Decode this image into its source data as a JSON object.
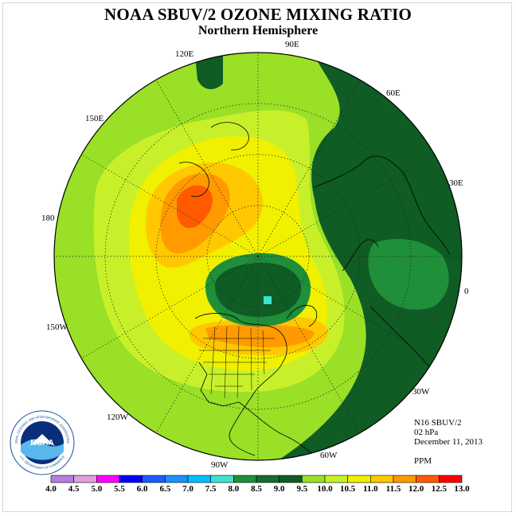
{
  "title": "NOAA SBUV/2 OZONE MIXING RATIO",
  "subtitle": "Northern Hemisphere",
  "longitude_labels": [
    "90E",
    "60E",
    "30E",
    "0",
    "30W",
    "60W",
    "90W",
    "120W",
    "150W",
    "180",
    "150E",
    "120E"
  ],
  "info": {
    "instrument": "N16 SBUV/2",
    "level": "02 hPa",
    "date": "December 11, 2013",
    "units": "PPM"
  },
  "logo": {
    "text": "NOAA",
    "ring_text": "NATIONAL OCEANIC AND ATMOSPHERIC ADMINISTRATION",
    "bottom_text": "U.S. DEPARTMENT OF COMMERCE"
  },
  "colorbar": {
    "ticks": [
      "4.0",
      "4.5",
      "5.0",
      "5.5",
      "6.0",
      "6.5",
      "7.0",
      "7.5",
      "8.0",
      "8.5",
      "9.0",
      "9.5",
      "10.0",
      "10.5",
      "11.0",
      "11.5",
      "12.0",
      "12.5",
      "13.0"
    ],
    "colors": [
      "#b57edc",
      "#dda0dd",
      "#ff00ff",
      "#0000ff",
      "#1e5aff",
      "#1e90ff",
      "#00bfff",
      "#40e0d0",
      "#1f8f3a",
      "#176b2e",
      "#0f5c24",
      "#99e026",
      "#c8f02a",
      "#f0f000",
      "#ffc800",
      "#ff9a00",
      "#ff5a00",
      "#ff0000",
      "#8b5a2b"
    ]
  },
  "colors": {
    "dark_green": "#0f5c24",
    "mid_green": "#1f8f3a",
    "light_green": "#99e026",
    "yellow_green": "#c8f02a",
    "yellow": "#f0f000",
    "orange_yellow": "#ffc800",
    "orange": "#ff9a00",
    "red_orange": "#ff5a00"
  }
}
